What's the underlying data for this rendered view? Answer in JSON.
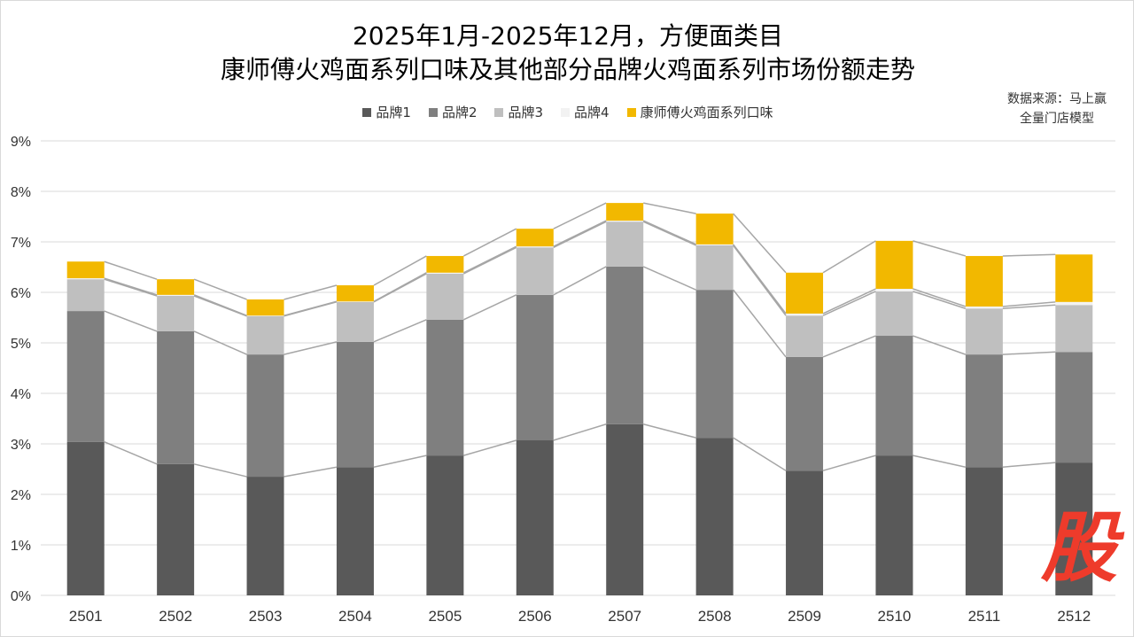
{
  "chart_data": {
    "type": "bar",
    "stacked": true,
    "title": [
      "2025年1月-2025年12月，方便面类目",
      "康师傅火鸡面系列口味及其他部分品牌火鸡面系列市场份额走势"
    ],
    "source": [
      "数据来源：马上赢",
      "全量门店模型"
    ],
    "categories": [
      "2501",
      "2502",
      "2503",
      "2504",
      "2505",
      "2506",
      "2507",
      "2508",
      "2509",
      "2510",
      "2511",
      "2512"
    ],
    "ylim": [
      0,
      9
    ],
    "yticks": [
      "0%",
      "1%",
      "2%",
      "3%",
      "4%",
      "5%",
      "6%",
      "7%",
      "8%",
      "9%"
    ],
    "grid": true,
    "legend": "top",
    "series": [
      {
        "name": "品牌1",
        "color": "#595959",
        "values": [
          3.04,
          2.6,
          2.35,
          2.54,
          2.77,
          3.07,
          3.39,
          3.12,
          2.47,
          2.77,
          2.54,
          2.63
        ]
      },
      {
        "name": "品牌2",
        "color": "#7f7f7f",
        "values": [
          2.59,
          2.63,
          2.42,
          2.48,
          2.69,
          2.88,
          3.12,
          2.93,
          2.25,
          2.37,
          2.23,
          2.19
        ]
      },
      {
        "name": "品牌3",
        "color": "#bfbfbf",
        "values": [
          0.63,
          0.7,
          0.76,
          0.79,
          0.91,
          0.94,
          0.89,
          0.88,
          0.82,
          0.88,
          0.91,
          0.93
        ]
      },
      {
        "name": "品牌4",
        "color": "#f2f2f2",
        "values": [
          0.02,
          0.02,
          0.01,
          0.01,
          0.02,
          0.02,
          0.02,
          0.02,
          0.04,
          0.05,
          0.04,
          0.06
        ]
      },
      {
        "name": "康师傅火鸡面系列口味",
        "color": "#f2b800",
        "values": [
          0.33,
          0.31,
          0.32,
          0.32,
          0.33,
          0.35,
          0.35,
          0.61,
          0.81,
          0.95,
          1.0,
          0.94
        ]
      }
    ]
  },
  "watermark": "股"
}
